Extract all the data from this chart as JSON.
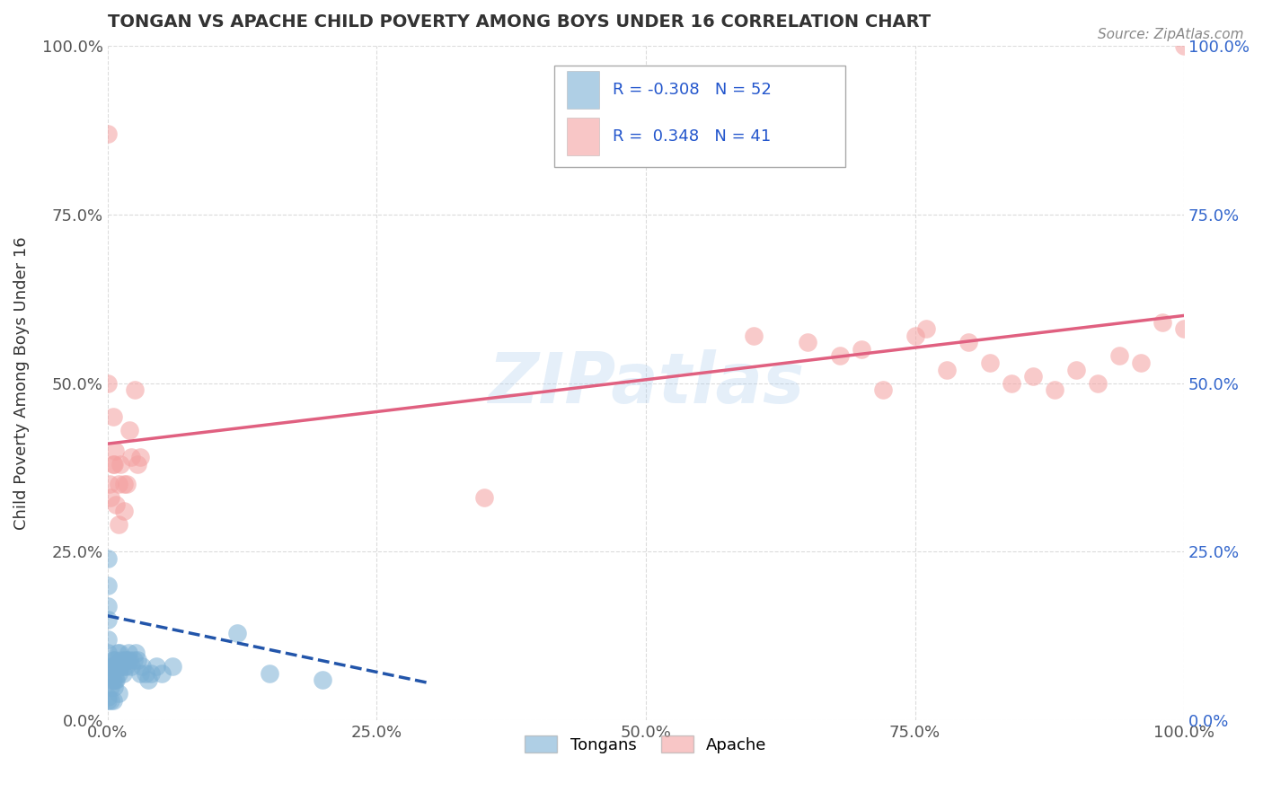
{
  "title": "TONGAN VS APACHE CHILD POVERTY AMONG BOYS UNDER 16 CORRELATION CHART",
  "source": "Source: ZipAtlas.com",
  "ylabel": "Child Poverty Among Boys Under 16",
  "xlim": [
    0,
    1
  ],
  "ylim": [
    0,
    1
  ],
  "xtick_labels": [
    "0.0%",
    "25.0%",
    "50.0%",
    "75.0%",
    "100.0%"
  ],
  "xtick_vals": [
    0,
    0.25,
    0.5,
    0.75,
    1.0
  ],
  "ytick_labels": [
    "0.0%",
    "25.0%",
    "50.0%",
    "75.0%",
    "100.0%"
  ],
  "ytick_vals": [
    0,
    0.25,
    0.5,
    0.75,
    1.0
  ],
  "tongan_color": "#7BAFD4",
  "apache_color": "#F4A0A0",
  "tongan_line_color": "#2255AA",
  "apache_line_color": "#E06080",
  "tongan_R": -0.308,
  "tongan_N": 52,
  "apache_R": 0.348,
  "apache_N": 41,
  "watermark": "ZIPatlas",
  "legend_labels": [
    "Tongans",
    "Apache"
  ],
  "tongan_x": [
    0.0,
    0.0,
    0.0,
    0.0,
    0.0,
    0.0,
    0.0,
    0.0,
    0.0,
    0.0,
    0.003,
    0.003,
    0.004,
    0.004,
    0.005,
    0.005,
    0.005,
    0.006,
    0.006,
    0.007,
    0.007,
    0.008,
    0.008,
    0.009,
    0.01,
    0.01,
    0.011,
    0.011,
    0.012,
    0.013,
    0.014,
    0.015,
    0.016,
    0.017,
    0.018,
    0.019,
    0.02,
    0.022,
    0.024,
    0.026,
    0.028,
    0.03,
    0.032,
    0.035,
    0.038,
    0.04,
    0.045,
    0.05,
    0.06,
    0.12,
    0.15,
    0.2
  ],
  "tongan_y": [
    0.03,
    0.035,
    0.07,
    0.08,
    0.1,
    0.12,
    0.15,
    0.17,
    0.2,
    0.24,
    0.03,
    0.05,
    0.06,
    0.08,
    0.03,
    0.06,
    0.09,
    0.05,
    0.08,
    0.06,
    0.09,
    0.06,
    0.08,
    0.1,
    0.04,
    0.07,
    0.08,
    0.1,
    0.08,
    0.09,
    0.07,
    0.08,
    0.09,
    0.08,
    0.09,
    0.1,
    0.09,
    0.08,
    0.09,
    0.1,
    0.09,
    0.07,
    0.08,
    0.07,
    0.06,
    0.07,
    0.08,
    0.07,
    0.08,
    0.13,
    0.07,
    0.06
  ],
  "apache_x": [
    0.0,
    0.0,
    0.002,
    0.003,
    0.005,
    0.005,
    0.006,
    0.007,
    0.008,
    0.01,
    0.01,
    0.012,
    0.015,
    0.015,
    0.018,
    0.02,
    0.022,
    0.025,
    0.028,
    0.03,
    0.6,
    0.65,
    0.68,
    0.7,
    0.72,
    0.75,
    0.76,
    0.78,
    0.8,
    0.82,
    0.84,
    0.86,
    0.88,
    0.9,
    0.92,
    0.94,
    0.96,
    0.98,
    1.0,
    1.0,
    0.35
  ],
  "apache_y": [
    0.87,
    0.5,
    0.35,
    0.33,
    0.38,
    0.45,
    0.38,
    0.4,
    0.32,
    0.35,
    0.29,
    0.38,
    0.35,
    0.31,
    0.35,
    0.43,
    0.39,
    0.49,
    0.38,
    0.39,
    0.57,
    0.56,
    0.54,
    0.55,
    0.49,
    0.57,
    0.58,
    0.52,
    0.56,
    0.53,
    0.5,
    0.51,
    0.49,
    0.52,
    0.5,
    0.54,
    0.53,
    0.59,
    0.58,
    1.0,
    0.33
  ],
  "apache_line_x0": 0.0,
  "apache_line_y0": 0.41,
  "apache_line_x1": 1.0,
  "apache_line_y1": 0.6,
  "tongan_line_x0": 0.0,
  "tongan_line_y0": 0.155,
  "tongan_line_x1": 0.3,
  "tongan_line_y1": 0.055
}
